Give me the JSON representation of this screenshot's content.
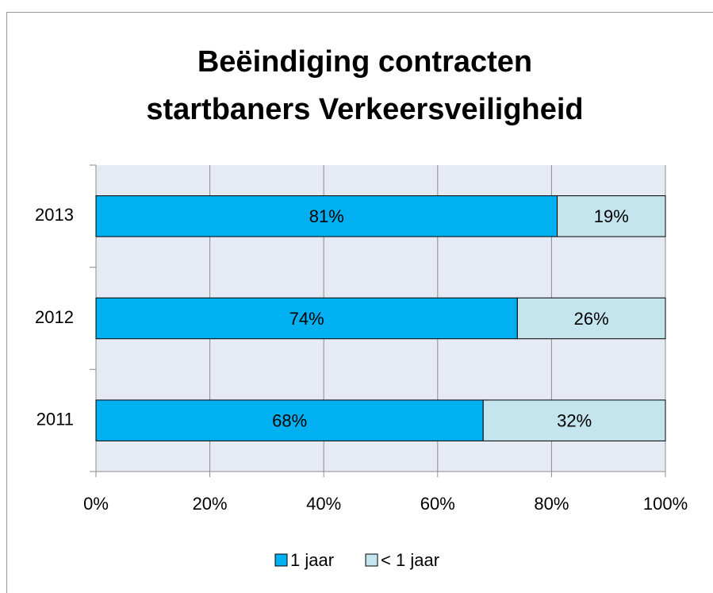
{
  "chart_data": {
    "type": "stacked-bar-horizontal",
    "title": [
      "Beëindiging contracten",
      "startbaners Verkeersveiligheid"
    ],
    "categories": [
      "2011",
      "2012",
      "2013"
    ],
    "series": [
      {
        "name": "1 jaar",
        "color": "#00b0f0",
        "values": [
          68,
          74,
          81
        ],
        "value_labels": [
          "68%",
          "74%",
          "81%"
        ]
      },
      {
        "name": "< 1 jaar",
        "color": "#c4e4ee",
        "values": [
          32,
          26,
          19
        ],
        "value_labels": [
          "32%",
          "26%",
          "19%"
        ]
      }
    ],
    "xlim": [
      0,
      100
    ],
    "xticks": [
      {
        "value": 0,
        "label": "0%"
      },
      {
        "value": 20,
        "label": "20%"
      },
      {
        "value": 40,
        "label": "40%"
      },
      {
        "value": 60,
        "label": "60%"
      },
      {
        "value": 80,
        "label": "80%"
      },
      {
        "value": 100,
        "label": "100%"
      }
    ],
    "grid": true,
    "legend": "bottom"
  }
}
